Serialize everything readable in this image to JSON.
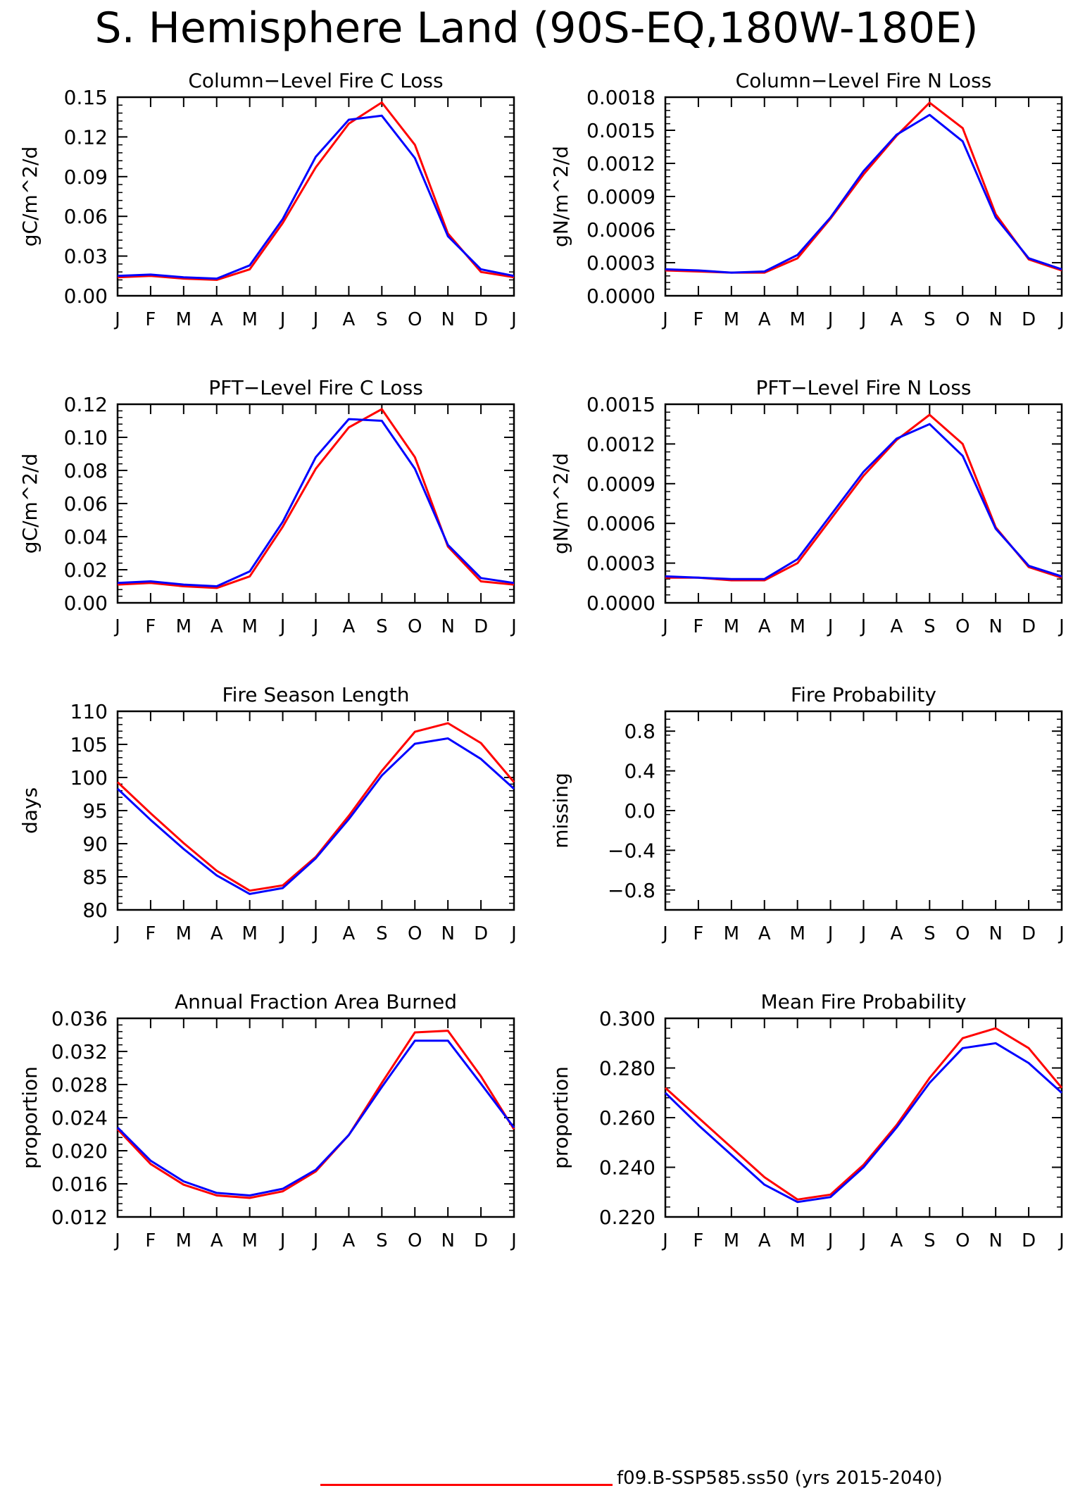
{
  "title": "S. Hemisphere Land (90S-EQ,180W-180E)",
  "colors": {
    "case1": "#ff0000",
    "case2": "#0000ff",
    "axis": "#000000"
  },
  "legend": [
    {
      "label": "f09.B-SSP585.ss50 (yrs 2015-2040)",
      "color": "#ff0000"
    }
  ],
  "chart_data": [
    {
      "type": "line",
      "title": "Column-Level Fire C Loss",
      "ylabel": "gC/m^2/d",
      "x": [
        "J",
        "F",
        "M",
        "A",
        "M",
        "J",
        "J",
        "A",
        "S",
        "O",
        "N",
        "D",
        "J"
      ],
      "ylim": [
        0,
        0.15
      ],
      "yticks": [
        "0.00",
        "0.03",
        "0.06",
        "0.09",
        "0.12",
        "0.15"
      ],
      "series": [
        {
          "color": "#ff0000",
          "values": [
            0.014,
            0.015,
            0.013,
            0.012,
            0.02,
            0.055,
            0.097,
            0.13,
            0.146,
            0.114,
            0.047,
            0.018,
            0.014
          ]
        },
        {
          "color": "#0000ff",
          "values": [
            0.015,
            0.016,
            0.014,
            0.013,
            0.023,
            0.058,
            0.105,
            0.133,
            0.136,
            0.104,
            0.045,
            0.02,
            0.015
          ]
        }
      ]
    },
    {
      "type": "line",
      "title": "Column-Level Fire N Loss",
      "ylabel": "gN/m^2/d",
      "x": [
        "J",
        "F",
        "M",
        "A",
        "M",
        "J",
        "J",
        "A",
        "S",
        "O",
        "N",
        "D",
        "J"
      ],
      "ylim": [
        0,
        0.0018
      ],
      "yticks": [
        "0.0000",
        "0.0003",
        "0.0006",
        "0.0009",
        "0.0012",
        "0.0015",
        "0.0018"
      ],
      "series": [
        {
          "color": "#ff0000",
          "values": [
            0.00023,
            0.00022,
            0.00021,
            0.00021,
            0.00034,
            0.0007,
            0.0011,
            0.00145,
            0.00175,
            0.00152,
            0.00074,
            0.00033,
            0.00023
          ]
        },
        {
          "color": "#0000ff",
          "values": [
            0.00024,
            0.00023,
            0.00021,
            0.00022,
            0.00037,
            0.00071,
            0.00113,
            0.00146,
            0.00164,
            0.0014,
            0.00071,
            0.00034,
            0.00024
          ]
        }
      ]
    },
    {
      "type": "line",
      "title": "PFT-Level Fire C Loss",
      "ylabel": "gC/m^2/d",
      "x": [
        "J",
        "F",
        "M",
        "A",
        "M",
        "J",
        "J",
        "A",
        "S",
        "O",
        "N",
        "D",
        "J"
      ],
      "ylim": [
        0,
        0.12
      ],
      "yticks": [
        "0.00",
        "0.02",
        "0.04",
        "0.06",
        "0.08",
        "0.10",
        "0.12"
      ],
      "series": [
        {
          "color": "#ff0000",
          "values": [
            0.011,
            0.012,
            0.01,
            0.009,
            0.016,
            0.046,
            0.081,
            0.106,
            0.117,
            0.088,
            0.034,
            0.013,
            0.011
          ]
        },
        {
          "color": "#0000ff",
          "values": [
            0.012,
            0.013,
            0.011,
            0.01,
            0.019,
            0.049,
            0.088,
            0.111,
            0.11,
            0.081,
            0.035,
            0.015,
            0.012
          ]
        }
      ]
    },
    {
      "type": "line",
      "title": "PFT-Level Fire N Loss",
      "ylabel": "gN/m^2/d",
      "x": [
        "J",
        "F",
        "M",
        "A",
        "M",
        "J",
        "J",
        "A",
        "S",
        "O",
        "N",
        "D",
        "J"
      ],
      "ylim": [
        0,
        0.0015
      ],
      "yticks": [
        "0.0000",
        "0.0003",
        "0.0006",
        "0.0009",
        "0.0012",
        "0.0015"
      ],
      "series": [
        {
          "color": "#ff0000",
          "values": [
            0.00019,
            0.00019,
            0.00017,
            0.00017,
            0.0003,
            0.00063,
            0.00096,
            0.00123,
            0.00142,
            0.0012,
            0.00057,
            0.00027,
            0.00019
          ]
        },
        {
          "color": "#0000ff",
          "values": [
            0.0002,
            0.00019,
            0.00018,
            0.00018,
            0.00033,
            0.00066,
            0.00099,
            0.00124,
            0.00135,
            0.00111,
            0.00056,
            0.00028,
            0.0002
          ]
        }
      ]
    },
    {
      "type": "line",
      "title": "Fire Season Length",
      "ylabel": "days",
      "x": [
        "J",
        "F",
        "M",
        "A",
        "M",
        "J",
        "J",
        "A",
        "S",
        "O",
        "N",
        "D",
        "J"
      ],
      "ylim": [
        80,
        110
      ],
      "yticks": [
        "80",
        "85",
        "90",
        "95",
        "100",
        "105",
        "110"
      ],
      "series": [
        {
          "color": "#ff0000",
          "values": [
            99.3,
            94.6,
            90.1,
            85.9,
            82.9,
            83.7,
            88.0,
            94.2,
            101.0,
            106.9,
            108.2,
            105.2,
            99.3
          ]
        },
        {
          "color": "#0000ff",
          "values": [
            98.3,
            93.6,
            89.2,
            85.2,
            82.4,
            83.3,
            87.8,
            93.7,
            100.3,
            105.1,
            105.9,
            102.8,
            98.3
          ]
        }
      ]
    },
    {
      "type": "line",
      "title": "Fire Probability",
      "ylabel": "missing",
      "x": [
        "J",
        "F",
        "M",
        "A",
        "M",
        "J",
        "J",
        "A",
        "S",
        "O",
        "N",
        "D",
        "J"
      ],
      "ylim": [
        -1,
        1
      ],
      "yticks": [
        "-0.8",
        "-0.4",
        "0.0",
        "0.4",
        "0.8"
      ],
      "ytick_values": [
        -0.8,
        -0.4,
        0.0,
        0.4,
        0.8
      ],
      "series": []
    },
    {
      "type": "line",
      "title": "Annual Fraction Area Burned",
      "ylabel": "proportion",
      "x": [
        "J",
        "F",
        "M",
        "A",
        "M",
        "J",
        "J",
        "A",
        "S",
        "O",
        "N",
        "D",
        "J"
      ],
      "ylim": [
        0.012,
        0.036
      ],
      "yticks": [
        "0.012",
        "0.016",
        "0.020",
        "0.024",
        "0.028",
        "0.032",
        "0.036"
      ],
      "series": [
        {
          "color": "#ff0000",
          "values": [
            0.0226,
            0.0184,
            0.0159,
            0.0146,
            0.0143,
            0.0151,
            0.0175,
            0.0219,
            0.0282,
            0.0343,
            0.0345,
            0.029,
            0.0226
          ]
        },
        {
          "color": "#0000ff",
          "values": [
            0.0228,
            0.0188,
            0.0163,
            0.0149,
            0.0146,
            0.0154,
            0.0177,
            0.0219,
            0.0277,
            0.0333,
            0.0333,
            0.0281,
            0.0228
          ]
        }
      ]
    },
    {
      "type": "line",
      "title": "Mean Fire Probability",
      "ylabel": "proportion",
      "x": [
        "J",
        "F",
        "M",
        "A",
        "M",
        "J",
        "J",
        "A",
        "S",
        "O",
        "N",
        "D",
        "J"
      ],
      "ylim": [
        0.22,
        0.3
      ],
      "yticks": [
        "0.220",
        "0.240",
        "0.260",
        "0.280",
        "0.300"
      ],
      "series": [
        {
          "color": "#ff0000",
          "values": [
            0.272,
            0.26,
            0.248,
            0.236,
            0.227,
            0.229,
            0.241,
            0.257,
            0.276,
            0.292,
            0.296,
            0.288,
            0.272
          ]
        },
        {
          "color": "#0000ff",
          "values": [
            0.27,
            0.257,
            0.245,
            0.233,
            0.226,
            0.228,
            0.24,
            0.256,
            0.274,
            0.288,
            0.29,
            0.282,
            0.27
          ]
        }
      ]
    }
  ]
}
